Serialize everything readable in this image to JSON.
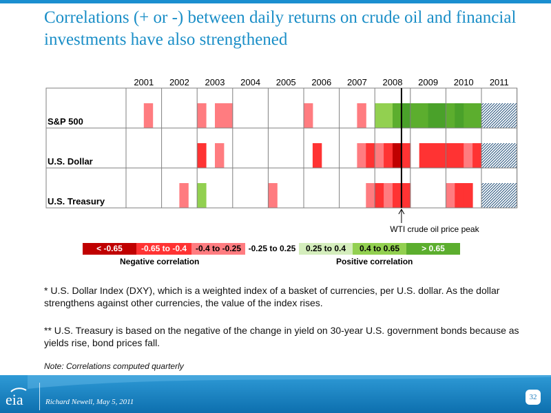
{
  "title": "Correlations (+ or -) between daily returns on crude oil and financial investments have also strengthened",
  "chart_data": {
    "type": "heatmap",
    "years": [
      "2001",
      "2002",
      "2003",
      "2004",
      "2005",
      "2006",
      "2007",
      "2008",
      "2009",
      "2010",
      "2011"
    ],
    "rows": [
      {
        "label": "S&P 500",
        "quarters": [
          null,
          null,
          2,
          null,
          null,
          null,
          null,
          null,
          2,
          null,
          2,
          2,
          null,
          null,
          null,
          null,
          null,
          null,
          null,
          null,
          2,
          null,
          null,
          null,
          null,
          null,
          2,
          null,
          5,
          5,
          6,
          7,
          6,
          6,
          7,
          7,
          6,
          7,
          6,
          6,
          8,
          8,
          8,
          8
        ]
      },
      {
        "label": "U.S. Dollar",
        "quarters": [
          null,
          null,
          null,
          null,
          null,
          null,
          null,
          null,
          1,
          null,
          2,
          null,
          null,
          null,
          null,
          null,
          null,
          null,
          null,
          null,
          null,
          1,
          null,
          null,
          null,
          null,
          2,
          1,
          2,
          1,
          0,
          1,
          null,
          1,
          1,
          1,
          1,
          1,
          2,
          1,
          8,
          8,
          8,
          8
        ]
      },
      {
        "label": "U.S. Treasury",
        "quarters": [
          null,
          null,
          null,
          null,
          null,
          null,
          2,
          null,
          5,
          null,
          null,
          null,
          null,
          null,
          null,
          null,
          2,
          null,
          null,
          null,
          null,
          null,
          null,
          null,
          null,
          null,
          null,
          2,
          1,
          2,
          1,
          1,
          null,
          null,
          null,
          null,
          2,
          1,
          1,
          null,
          8,
          8,
          8,
          8
        ]
      }
    ],
    "legend": [
      {
        "label": "< -0.65",
        "color": "#c00000",
        "text_color": "#ffffff"
      },
      {
        "label": "-0.65 to -0.4",
        "color": "#ff3333",
        "text_color": "#ffffff"
      },
      {
        "label": "-0.4 to -0.25",
        "color": "#ff7c80",
        "text_color": "#000000"
      },
      {
        "label": "-0.25 to 0.25",
        "color": "#ffffff",
        "text_color": "#000000"
      },
      {
        "label": "0.25 to 0.4",
        "color": "#d4edbc",
        "text_color": "#000000"
      },
      {
        "label": "0.4 to 0.65",
        "color": "#92d050",
        "text_color": "#000000"
      },
      {
        "label": "> 0.65",
        "color": "#5cae2e",
        "text_color": "#ffffff"
      }
    ],
    "extra_colors": [
      "#4aa12a",
      "#1f4e79"
    ],
    "category_labels": {
      "negative": "Negative correlation",
      "positive": "Positive correlation"
    },
    "annotation": {
      "label": "WTI crude oil price peak",
      "year": "2008",
      "quarter": 3
    }
  },
  "notes": {
    "dollar": "* U.S. Dollar Index (DXY), which is a weighted index of a basket of currencies, per U.S. dollar. As the dollar strengthens against other currencies, the value of the index rises.",
    "treasury": "** U.S. Treasury is based on the negative of the change in yield on 30-year U.S. government bonds because as yields rise, bond prices fall.",
    "quarterly": "Note:  Correlations computed quarterly"
  },
  "footer": {
    "logo": "eia",
    "credit": "Richard Newell, May 5, 2011",
    "page": "32"
  }
}
